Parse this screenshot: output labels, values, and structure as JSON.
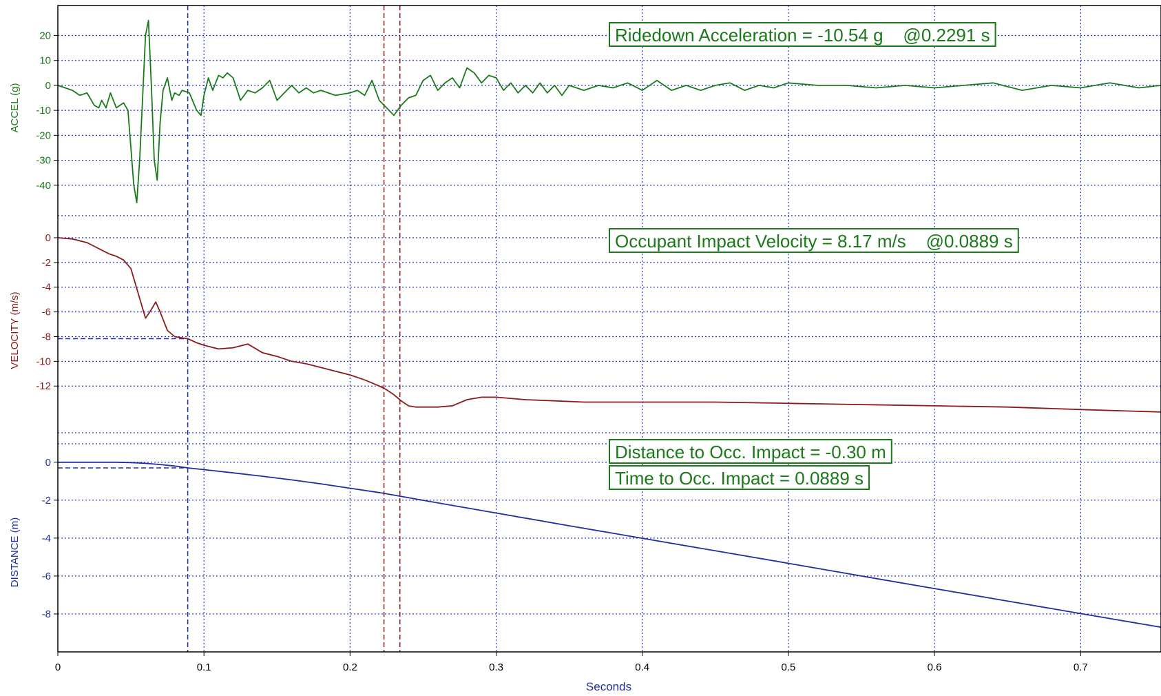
{
  "chart_data": {
    "type": "line",
    "xlabel": "Seconds",
    "xlim": [
      0,
      0.755
    ],
    "x_ticks": [
      "0",
      "0.1",
      "0.2",
      "0.3",
      "0.4",
      "0.5",
      "0.6",
      "0.7"
    ],
    "grid": true,
    "colors": {
      "accel": "#1a7a1a",
      "velocity": "#8b1a1a",
      "distance": "#1f2fa0",
      "grid": "#1c2fd0"
    },
    "panels": [
      {
        "id": "accel",
        "ylabel": "ACCEL (g)",
        "ylim": [
          -50,
          32
        ],
        "y_ticks": [
          "20",
          "10",
          "0",
          "-10",
          "-20",
          "-30",
          "-40"
        ],
        "series": [
          {
            "x": [
              0,
              0.01,
              0.015,
              0.02,
              0.025,
              0.028,
              0.03,
              0.033,
              0.036,
              0.04,
              0.045,
              0.048,
              0.05,
              0.052,
              0.054,
              0.056,
              0.058,
              0.06,
              0.062,
              0.064,
              0.066,
              0.068,
              0.07,
              0.072,
              0.075,
              0.078,
              0.08,
              0.083,
              0.085,
              0.09,
              0.095,
              0.098,
              0.1,
              0.103,
              0.106,
              0.11,
              0.113,
              0.116,
              0.12,
              0.125,
              0.13,
              0.135,
              0.14,
              0.145,
              0.15,
              0.155,
              0.16,
              0.165,
              0.17,
              0.175,
              0.18,
              0.19,
              0.2,
              0.205,
              0.21,
              0.215,
              0.22,
              0.225,
              0.23,
              0.235,
              0.24,
              0.245,
              0.25,
              0.255,
              0.26,
              0.265,
              0.27,
              0.275,
              0.28,
              0.285,
              0.29,
              0.295,
              0.3,
              0.305,
              0.31,
              0.315,
              0.32,
              0.325,
              0.33,
              0.335,
              0.34,
              0.345,
              0.35,
              0.36,
              0.37,
              0.38,
              0.39,
              0.4,
              0.41,
              0.42,
              0.43,
              0.44,
              0.45,
              0.46,
              0.47,
              0.48,
              0.49,
              0.5,
              0.52,
              0.54,
              0.56,
              0.58,
              0.6,
              0.62,
              0.64,
              0.66,
              0.68,
              0.7,
              0.72,
              0.74,
              0.755
            ],
            "y": [
              0,
              -2,
              -4,
              -3,
              -8,
              -9,
              -6,
              -9,
              -3,
              -9,
              -7,
              -10,
              -25,
              -40,
              -47,
              -30,
              -5,
              20,
              26,
              0,
              -30,
              -38,
              -15,
              -2,
              3,
              -6,
              -3,
              -4,
              -2,
              -3,
              -10,
              -12,
              -4,
              3,
              -2,
              4,
              3,
              5,
              3,
              -6,
              -2,
              -3,
              -1,
              2,
              -6,
              -3,
              0,
              -3,
              -1,
              -3,
              -2,
              -4,
              -3,
              -2,
              -4,
              2,
              -6,
              -9,
              -12,
              -8,
              -5,
              -4,
              2,
              4,
              -2,
              1,
              3,
              -1,
              7,
              5,
              1,
              4,
              3,
              -2,
              1,
              -3,
              0,
              -3,
              1,
              -3,
              0,
              -4,
              0,
              -2,
              0,
              -1,
              1,
              -2,
              2,
              -2,
              0,
              -2,
              0,
              1,
              -2,
              0,
              -1,
              1,
              0,
              0,
              -1,
              0,
              -1,
              0,
              1,
              -2,
              0,
              -1,
              1,
              -1,
              0
            ]
          }
        ]
      },
      {
        "id": "velocity",
        "ylabel": "VELOCITY (m/s)",
        "ylim": [
          -15.5,
          0.5
        ],
        "y_ticks": [
          "0",
          "-2",
          "-4",
          "-6",
          "-8",
          "-10",
          "-12"
        ],
        "series": [
          {
            "x": [
              0,
              0.01,
              0.02,
              0.025,
              0.03,
              0.035,
              0.04,
              0.045,
              0.05,
              0.055,
              0.06,
              0.063,
              0.067,
              0.07,
              0.075,
              0.08,
              0.085,
              0.089,
              0.095,
              0.1,
              0.11,
              0.12,
              0.13,
              0.14,
              0.15,
              0.16,
              0.17,
              0.18,
              0.19,
              0.2,
              0.21,
              0.22,
              0.225,
              0.23,
              0.235,
              0.24,
              0.245,
              0.25,
              0.26,
              0.27,
              0.28,
              0.29,
              0.3,
              0.32,
              0.34,
              0.36,
              0.38,
              0.4,
              0.45,
              0.5,
              0.55,
              0.6,
              0.65,
              0.7,
              0.755
            ],
            "y": [
              0,
              -0.1,
              -0.4,
              -0.7,
              -1,
              -1.3,
              -1.5,
              -1.8,
              -2.5,
              -4.5,
              -6.5,
              -6,
              -5.2,
              -6,
              -7.5,
              -8,
              -8.1,
              -8.17,
              -8.5,
              -8.7,
              -9,
              -8.9,
              -8.6,
              -9.3,
              -9.6,
              -10,
              -10.2,
              -10.5,
              -10.8,
              -11.1,
              -11.5,
              -12,
              -12.3,
              -12.7,
              -13.2,
              -13.6,
              -13.7,
              -13.7,
              -13.7,
              -13.6,
              -13.1,
              -12.9,
              -12.9,
              -13.1,
              -13.2,
              -13.3,
              -13.3,
              -13.3,
              -13.3,
              -13.4,
              -13.5,
              -13.6,
              -13.7,
              -13.9,
              -14.1
            ]
          }
        ]
      },
      {
        "id": "distance",
        "ylabel": "DISTANCE (m)",
        "ylim": [
          -10,
          0.5
        ],
        "y_ticks": [
          "0",
          "-2",
          "-4",
          "-6",
          "-8"
        ],
        "series": [
          {
            "x": [
              0,
              0.02,
              0.04,
              0.05,
              0.06,
              0.07,
              0.08,
              0.089,
              0.1,
              0.12,
              0.14,
              0.16,
              0.18,
              0.2,
              0.22,
              0.24,
              0.26,
              0.28,
              0.3,
              0.35,
              0.4,
              0.45,
              0.5,
              0.55,
              0.6,
              0.65,
              0.7,
              0.755
            ],
            "y": [
              0,
              0,
              0,
              -0.02,
              -0.06,
              -0.12,
              -0.2,
              -0.3,
              -0.39,
              -0.56,
              -0.74,
              -0.93,
              -1.14,
              -1.37,
              -1.6,
              -1.87,
              -2.14,
              -2.41,
              -2.68,
              -3.35,
              -4.01,
              -4.67,
              -5.33,
              -6,
              -6.66,
              -7.32,
              -7.98,
              -8.7
            ]
          }
        ]
      }
    ],
    "markers": {
      "impact_time": 0.0889,
      "ridedown_start": 0.2232,
      "ridedown_end": 0.2341,
      "impact_velocity": -8.17,
      "impact_distance": -0.3
    },
    "annotations": [
      {
        "id": "ridedown",
        "text": "Ridedown Acceleration = -10.54 g    @0.2291 s"
      },
      {
        "id": "oiv",
        "text": "Occupant Impact Velocity = 8.17 m/s    @0.0889 s"
      },
      {
        "id": "distance",
        "text": "Distance to Occ. Impact = -0.30 m"
      },
      {
        "id": "time",
        "text": "Time to Occ. Impact = 0.0889 s"
      }
    ]
  }
}
